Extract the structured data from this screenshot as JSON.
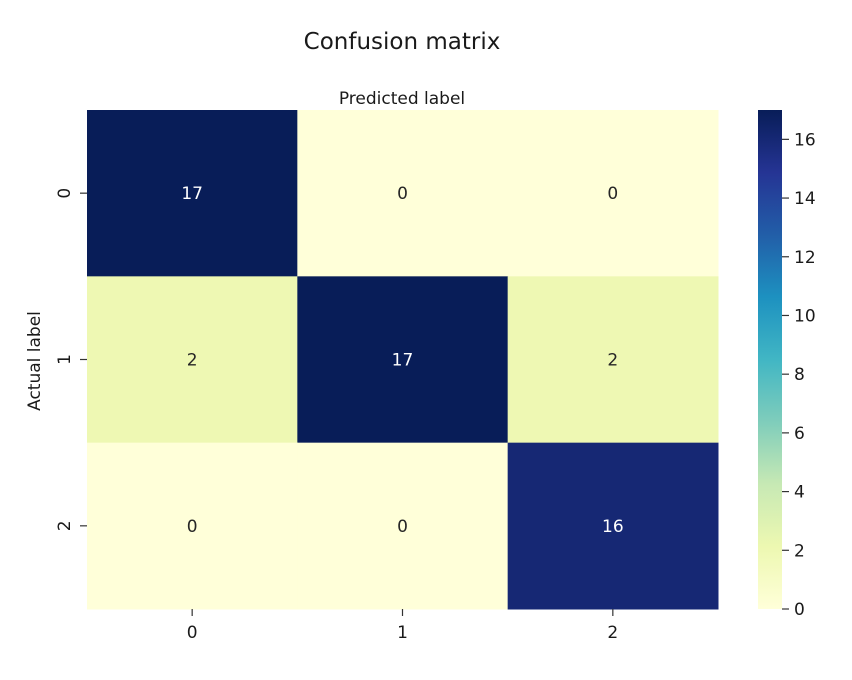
{
  "chart_data": {
    "type": "heatmap",
    "title": "Confusion matrix",
    "xlabel": "Predicted label",
    "ylabel": "Actual label",
    "x_categories": [
      "0",
      "1",
      "2"
    ],
    "y_categories": [
      "0",
      "1",
      "2"
    ],
    "values": [
      [
        17,
        0,
        0
      ],
      [
        2,
        17,
        2
      ],
      [
        0,
        0,
        16
      ]
    ],
    "colormap": "YlGnBu",
    "colorbar": {
      "range": [
        0,
        17
      ],
      "ticks": [
        "0",
        "2",
        "4",
        "6",
        "8",
        "10",
        "12",
        "14",
        "16"
      ]
    },
    "annotated": true,
    "xlabel_position": "top",
    "grid": false
  }
}
